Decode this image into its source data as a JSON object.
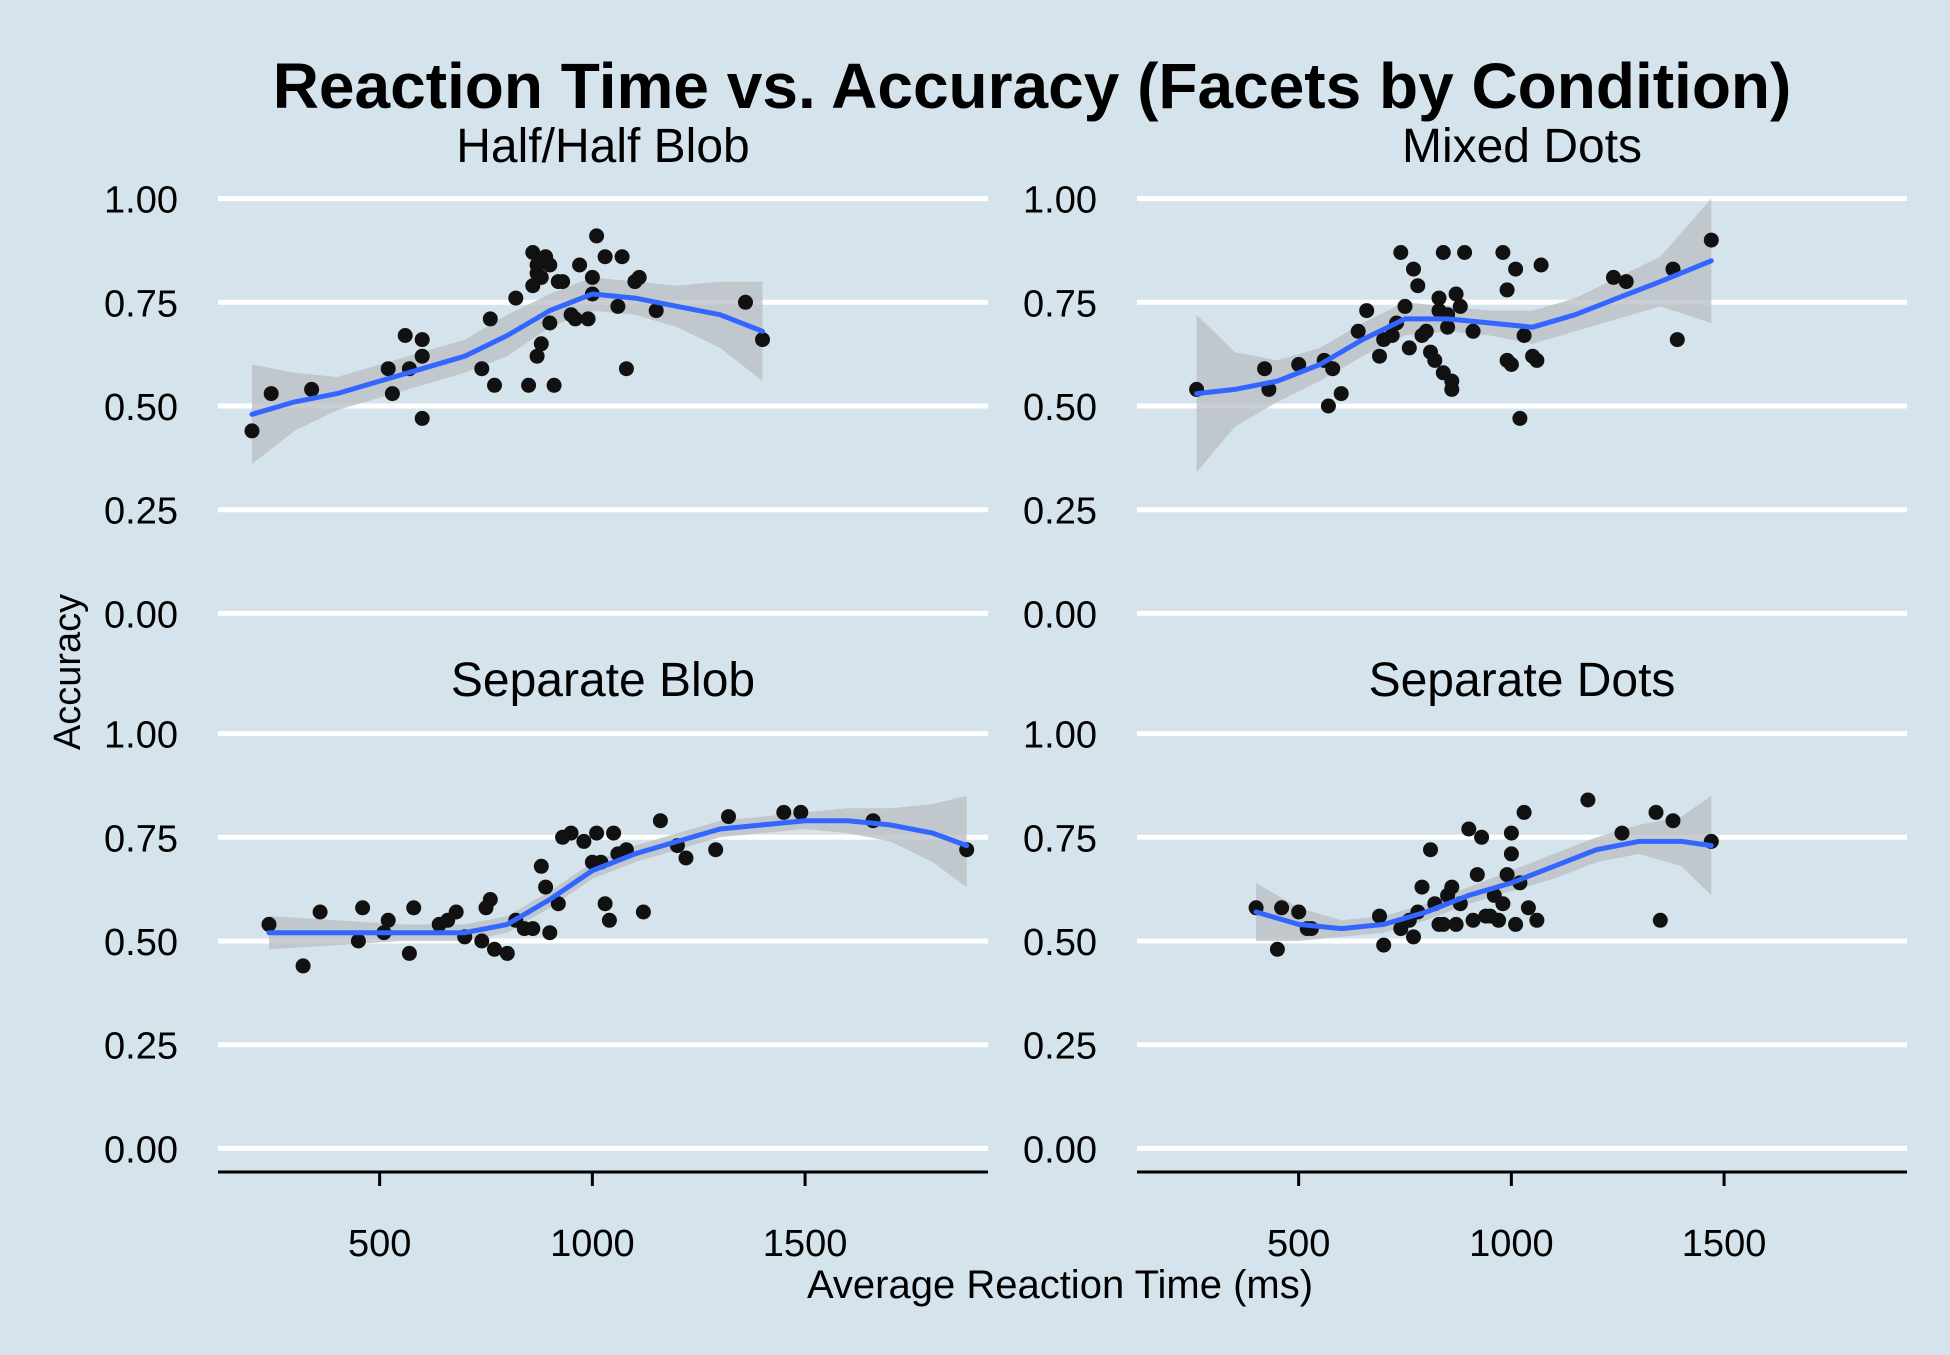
{
  "chart_data": {
    "type": "scatter",
    "title": "Reaction Time vs. Accuracy (Facets by Condition)",
    "xlabel": "Average Reaction Time (ms)",
    "ylabel": "Accuracy",
    "xlim": [
      120,
      1930
    ],
    "ylim": [
      -0.04,
      1.04
    ],
    "x_ticks": [
      500,
      1000,
      1500
    ],
    "y_ticks": [
      0,
      0.25,
      0.5,
      0.75,
      1.0
    ],
    "y_tick_labels": [
      "0.00",
      "0.25",
      "0.50",
      "0.75",
      "1.00"
    ],
    "grid": "horizontal major",
    "colors": {
      "background": "#d5e4ec",
      "grid": "#ffffff",
      "points": "#111111",
      "smooth_line": "#3366ff",
      "ribbon": "#b8bec3"
    },
    "facets": [
      {
        "label": "Half/Half Blob",
        "points": [
          [
            200,
            0.44
          ],
          [
            245,
            0.53
          ],
          [
            340,
            0.54
          ],
          [
            520,
            0.59
          ],
          [
            530,
            0.53
          ],
          [
            560,
            0.67
          ],
          [
            570,
            0.59
          ],
          [
            600,
            0.66
          ],
          [
            600,
            0.62
          ],
          [
            600,
            0.47
          ],
          [
            740,
            0.59
          ],
          [
            760,
            0.71
          ],
          [
            770,
            0.55
          ],
          [
            820,
            0.76
          ],
          [
            850,
            0.55
          ],
          [
            860,
            0.87
          ],
          [
            860,
            0.79
          ],
          [
            870,
            0.84
          ],
          [
            870,
            0.82
          ],
          [
            870,
            0.62
          ],
          [
            880,
            0.65
          ],
          [
            880,
            0.81
          ],
          [
            890,
            0.86
          ],
          [
            900,
            0.7
          ],
          [
            900,
            0.84
          ],
          [
            910,
            0.55
          ],
          [
            920,
            0.8
          ],
          [
            930,
            0.8
          ],
          [
            950,
            0.72
          ],
          [
            960,
            0.71
          ],
          [
            970,
            0.84
          ],
          [
            990,
            0.71
          ],
          [
            1000,
            0.81
          ],
          [
            1000,
            0.77
          ],
          [
            1010,
            0.91
          ],
          [
            1030,
            0.86
          ],
          [
            1060,
            0.74
          ],
          [
            1070,
            0.86
          ],
          [
            1080,
            0.59
          ],
          [
            1100,
            0.8
          ],
          [
            1110,
            0.81
          ],
          [
            1150,
            0.73
          ],
          [
            1360,
            0.75
          ],
          [
            1400,
            0.66
          ]
        ],
        "smooth": {
          "x": [
            200,
            300,
            400,
            500,
            600,
            700,
            800,
            900,
            1000,
            1100,
            1200,
            1300,
            1400
          ],
          "y": [
            0.48,
            0.51,
            0.53,
            0.56,
            0.59,
            0.62,
            0.67,
            0.73,
            0.77,
            0.76,
            0.74,
            0.72,
            0.68
          ],
          "lower": [
            0.36,
            0.44,
            0.49,
            0.52,
            0.55,
            0.58,
            0.62,
            0.69,
            0.73,
            0.72,
            0.69,
            0.64,
            0.56
          ],
          "upper": [
            0.6,
            0.58,
            0.57,
            0.6,
            0.63,
            0.66,
            0.72,
            0.77,
            0.81,
            0.8,
            0.79,
            0.8,
            0.8
          ]
        }
      },
      {
        "label": "Mixed Dots",
        "points": [
          [
            260,
            0.54
          ],
          [
            420,
            0.59
          ],
          [
            430,
            0.54
          ],
          [
            500,
            0.6
          ],
          [
            560,
            0.61
          ],
          [
            570,
            0.5
          ],
          [
            580,
            0.59
          ],
          [
            600,
            0.53
          ],
          [
            640,
            0.68
          ],
          [
            660,
            0.73
          ],
          [
            690,
            0.62
          ],
          [
            700,
            0.66
          ],
          [
            720,
            0.67
          ],
          [
            730,
            0.7
          ],
          [
            740,
            0.87
          ],
          [
            750,
            0.74
          ],
          [
            760,
            0.64
          ],
          [
            770,
            0.83
          ],
          [
            780,
            0.79
          ],
          [
            790,
            0.67
          ],
          [
            800,
            0.68
          ],
          [
            810,
            0.63
          ],
          [
            820,
            0.61
          ],
          [
            830,
            0.73
          ],
          [
            830,
            0.76
          ],
          [
            840,
            0.87
          ],
          [
            840,
            0.58
          ],
          [
            850,
            0.72
          ],
          [
            850,
            0.69
          ],
          [
            860,
            0.56
          ],
          [
            860,
            0.54
          ],
          [
            870,
            0.77
          ],
          [
            880,
            0.74
          ],
          [
            890,
            0.87
          ],
          [
            910,
            0.68
          ],
          [
            980,
            0.87
          ],
          [
            990,
            0.78
          ],
          [
            990,
            0.61
          ],
          [
            1000,
            0.6
          ],
          [
            1010,
            0.83
          ],
          [
            1020,
            0.47
          ],
          [
            1030,
            0.67
          ],
          [
            1050,
            0.62
          ],
          [
            1060,
            0.61
          ],
          [
            1070,
            0.84
          ],
          [
            1240,
            0.81
          ],
          [
            1270,
            0.8
          ],
          [
            1380,
            0.83
          ],
          [
            1390,
            0.66
          ],
          [
            1470,
            0.9
          ]
        ],
        "smooth": {
          "x": [
            260,
            350,
            450,
            550,
            650,
            750,
            850,
            950,
            1050,
            1150,
            1250,
            1350,
            1470
          ],
          "y": [
            0.53,
            0.54,
            0.56,
            0.6,
            0.66,
            0.71,
            0.71,
            0.7,
            0.69,
            0.72,
            0.76,
            0.8,
            0.85
          ],
          "lower": [
            0.34,
            0.45,
            0.51,
            0.56,
            0.62,
            0.67,
            0.68,
            0.67,
            0.65,
            0.68,
            0.71,
            0.74,
            0.7
          ],
          "upper": [
            0.72,
            0.63,
            0.61,
            0.64,
            0.7,
            0.75,
            0.74,
            0.73,
            0.73,
            0.76,
            0.81,
            0.86,
            1.0
          ]
        }
      },
      {
        "label": "Separate Blob",
        "points": [
          [
            240,
            0.54
          ],
          [
            320,
            0.44
          ],
          [
            360,
            0.57
          ],
          [
            450,
            0.5
          ],
          [
            460,
            0.58
          ],
          [
            510,
            0.52
          ],
          [
            520,
            0.55
          ],
          [
            570,
            0.47
          ],
          [
            580,
            0.58
          ],
          [
            640,
            0.54
          ],
          [
            660,
            0.55
          ],
          [
            680,
            0.57
          ],
          [
            700,
            0.51
          ],
          [
            740,
            0.5
          ],
          [
            750,
            0.58
          ],
          [
            760,
            0.6
          ],
          [
            770,
            0.48
          ],
          [
            800,
            0.47
          ],
          [
            820,
            0.55
          ],
          [
            840,
            0.53
          ],
          [
            860,
            0.53
          ],
          [
            880,
            0.68
          ],
          [
            890,
            0.63
          ],
          [
            900,
            0.52
          ],
          [
            920,
            0.59
          ],
          [
            930,
            0.75
          ],
          [
            950,
            0.76
          ],
          [
            980,
            0.74
          ],
          [
            1000,
            0.69
          ],
          [
            1010,
            0.76
          ],
          [
            1020,
            0.69
          ],
          [
            1030,
            0.59
          ],
          [
            1040,
            0.55
          ],
          [
            1050,
            0.76
          ],
          [
            1060,
            0.71
          ],
          [
            1080,
            0.72
          ],
          [
            1120,
            0.57
          ],
          [
            1160,
            0.79
          ],
          [
            1200,
            0.73
          ],
          [
            1220,
            0.7
          ],
          [
            1290,
            0.72
          ],
          [
            1320,
            0.8
          ],
          [
            1450,
            0.81
          ],
          [
            1490,
            0.81
          ],
          [
            1660,
            0.79
          ],
          [
            1880,
            0.72
          ]
        ],
        "smooth": {
          "x": [
            240,
            400,
            550,
            700,
            800,
            900,
            1000,
            1100,
            1200,
            1300,
            1400,
            1500,
            1600,
            1700,
            1800,
            1880
          ],
          "y": [
            0.52,
            0.52,
            0.52,
            0.52,
            0.54,
            0.6,
            0.67,
            0.71,
            0.74,
            0.77,
            0.78,
            0.79,
            0.79,
            0.78,
            0.76,
            0.73
          ],
          "lower": [
            0.48,
            0.49,
            0.5,
            0.5,
            0.52,
            0.58,
            0.65,
            0.69,
            0.72,
            0.75,
            0.76,
            0.77,
            0.76,
            0.74,
            0.69,
            0.63
          ],
          "upper": [
            0.56,
            0.55,
            0.54,
            0.54,
            0.56,
            0.62,
            0.69,
            0.73,
            0.76,
            0.79,
            0.8,
            0.81,
            0.82,
            0.82,
            0.83,
            0.85
          ]
        }
      },
      {
        "label": "Separate Dots",
        "points": [
          [
            400,
            0.58
          ],
          [
            450,
            0.48
          ],
          [
            460,
            0.58
          ],
          [
            500,
            0.57
          ],
          [
            520,
            0.53
          ],
          [
            530,
            0.53
          ],
          [
            690,
            0.56
          ],
          [
            700,
            0.49
          ],
          [
            740,
            0.53
          ],
          [
            760,
            0.55
          ],
          [
            770,
            0.51
          ],
          [
            780,
            0.57
          ],
          [
            790,
            0.63
          ],
          [
            810,
            0.72
          ],
          [
            820,
            0.59
          ],
          [
            830,
            0.54
          ],
          [
            840,
            0.54
          ],
          [
            850,
            0.61
          ],
          [
            860,
            0.63
          ],
          [
            870,
            0.54
          ],
          [
            880,
            0.59
          ],
          [
            900,
            0.77
          ],
          [
            910,
            0.55
          ],
          [
            920,
            0.66
          ],
          [
            930,
            0.75
          ],
          [
            940,
            0.56
          ],
          [
            950,
            0.56
          ],
          [
            960,
            0.61
          ],
          [
            970,
            0.55
          ],
          [
            980,
            0.59
          ],
          [
            990,
            0.66
          ],
          [
            1000,
            0.71
          ],
          [
            1000,
            0.76
          ],
          [
            1010,
            0.54
          ],
          [
            1020,
            0.64
          ],
          [
            1030,
            0.81
          ],
          [
            1040,
            0.58
          ],
          [
            1060,
            0.55
          ],
          [
            1180,
            0.84
          ],
          [
            1260,
            0.76
          ],
          [
            1340,
            0.81
          ],
          [
            1350,
            0.55
          ],
          [
            1380,
            0.79
          ],
          [
            1470,
            0.74
          ]
        ],
        "smooth": {
          "x": [
            400,
            500,
            600,
            700,
            800,
            900,
            1000,
            1100,
            1200,
            1300,
            1400,
            1470
          ],
          "y": [
            0.57,
            0.54,
            0.53,
            0.54,
            0.57,
            0.61,
            0.64,
            0.68,
            0.72,
            0.74,
            0.74,
            0.73
          ],
          "lower": [
            0.5,
            0.5,
            0.51,
            0.52,
            0.55,
            0.59,
            0.62,
            0.65,
            0.69,
            0.71,
            0.68,
            0.61
          ],
          "upper": [
            0.64,
            0.58,
            0.55,
            0.56,
            0.59,
            0.63,
            0.67,
            0.71,
            0.75,
            0.78,
            0.8,
            0.85
          ]
        }
      }
    ]
  }
}
